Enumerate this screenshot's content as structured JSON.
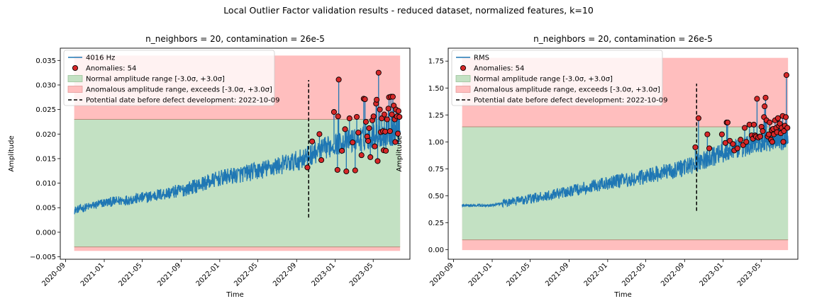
{
  "suptitle": "Local Outlier Factor validation results - reduced dataset, normalized features, k=10",
  "colors": {
    "signal": "#1f77b4",
    "anomaly_fill": "#d62728",
    "normal_band": "#c3e1c3",
    "anomalous_band": "#ffbebe",
    "defect_line": "#000000"
  },
  "chart_data": [
    {
      "type": "line",
      "title": "n_neighbors = 20, contamination = 26e-5",
      "xlabel": "Time",
      "ylabel": "Amplitude",
      "xlim": [
        "2020-08-15",
        "2023-08-25"
      ],
      "ylim": [
        -0.0055,
        0.0375
      ],
      "x_ticks": [
        "2020-09",
        "2021-01",
        "2021-05",
        "2021-09",
        "2022-01",
        "2022-05",
        "2022-09",
        "2023-01",
        "2023-05"
      ],
      "y_ticks": [
        -0.005,
        0.0,
        0.005,
        0.01,
        0.015,
        0.02,
        0.025,
        0.03,
        0.035
      ],
      "y_tick_labels": [
        "−0.005",
        "0.000",
        "0.005",
        "0.010",
        "0.015",
        "0.020",
        "0.025",
        "0.030",
        "0.035"
      ],
      "x_range": [
        "2020-09-28",
        "2023-07-25"
      ],
      "legend_position": "upper-left",
      "legend": {
        "series": "4016 Hz",
        "anomalies": "Anomalies: 54",
        "normal": "Normal amplitude range [-3.0σ, +3.0σ]",
        "anomalous": "Anomalous amplitude range, exceeds [-3.0σ, +3.0σ]",
        "defect": "Potential date before defect development: 2022-10-09"
      },
      "normal_range": [
        -0.003,
        0.023
      ],
      "anomalous_range": [
        -0.0038,
        0.036
      ],
      "defect_date": "2022-10-09",
      "defect_line_range": [
        0.003,
        0.031
      ],
      "series_trend": [
        [
          "2020-09-28",
          0.0045
        ],
        [
          "2021-01-01",
          0.006
        ],
        [
          "2021-05-01",
          0.007
        ],
        [
          "2021-09-01",
          0.0085
        ],
        [
          "2022-01-01",
          0.011
        ],
        [
          "2022-05-01",
          0.0125
        ],
        [
          "2022-09-01",
          0.0145
        ],
        [
          "2023-01-01",
          0.018
        ],
        [
          "2023-05-01",
          0.0195
        ],
        [
          "2023-07-25",
          0.0205
        ]
      ],
      "anomalies": [
        [
          "2022-10-05",
          0.0132
        ],
        [
          "2022-10-20",
          0.0185
        ],
        [
          "2022-11-12",
          0.02
        ],
        [
          "2022-11-18",
          0.0147
        ],
        [
          "2022-12-28",
          0.0245
        ],
        [
          "2023-01-08",
          0.0127
        ],
        [
          "2023-01-10",
          0.0236
        ],
        [
          "2023-01-12",
          0.0311
        ],
        [
          "2023-01-22",
          0.0166
        ],
        [
          "2023-02-01",
          0.021
        ],
        [
          "2023-02-05",
          0.0124
        ],
        [
          "2023-02-15",
          0.0232
        ],
        [
          "2023-02-25",
          0.0183
        ],
        [
          "2023-03-05",
          0.0126
        ],
        [
          "2023-03-10",
          0.0235
        ],
        [
          "2023-03-15",
          0.0203
        ],
        [
          "2023-03-25",
          0.0157
        ],
        [
          "2023-04-01",
          0.0272
        ],
        [
          "2023-04-05",
          0.0271
        ],
        [
          "2023-04-08",
          0.0225
        ],
        [
          "2023-04-12",
          0.0195
        ],
        [
          "2023-04-15",
          0.0186
        ],
        [
          "2023-04-18",
          0.0212
        ],
        [
          "2023-04-22",
          0.0153
        ],
        [
          "2023-04-28",
          0.0228
        ],
        [
          "2023-05-02",
          0.0236
        ],
        [
          "2023-05-06",
          0.0175
        ],
        [
          "2023-05-10",
          0.0262
        ],
        [
          "2023-05-12",
          0.027
        ],
        [
          "2023-05-15",
          0.0145
        ],
        [
          "2023-05-18",
          0.0325
        ],
        [
          "2023-05-22",
          0.025
        ],
        [
          "2023-05-25",
          0.0204
        ],
        [
          "2023-05-28",
          0.0232
        ],
        [
          "2023-06-01",
          0.0206
        ],
        [
          "2023-06-03",
          0.0167
        ],
        [
          "2023-06-05",
          0.024
        ],
        [
          "2023-06-08",
          0.0205
        ],
        [
          "2023-06-10",
          0.0166
        ],
        [
          "2023-06-14",
          0.023
        ],
        [
          "2023-06-18",
          0.0252
        ],
        [
          "2023-06-20",
          0.0275
        ],
        [
          "2023-06-23",
          0.0206
        ],
        [
          "2023-06-26",
          0.0276
        ],
        [
          "2023-06-29",
          0.024
        ],
        [
          "2023-07-02",
          0.0276
        ],
        [
          "2023-07-05",
          0.0258
        ],
        [
          "2023-07-08",
          0.023
        ],
        [
          "2023-07-10",
          0.0184
        ],
        [
          "2023-07-12",
          0.025
        ],
        [
          "2023-07-15",
          0.0236
        ],
        [
          "2023-07-18",
          0.0201
        ],
        [
          "2023-07-20",
          0.0247
        ],
        [
          "2023-07-23",
          0.0235
        ]
      ]
    },
    {
      "type": "line",
      "title": "n_neighbors = 20, contamination = 26e-5",
      "xlabel": "Time",
      "ylabel": "Amplitude",
      "xlim": [
        "2020-08-15",
        "2023-08-25"
      ],
      "ylim": [
        -0.09,
        1.87
      ],
      "x_ticks": [
        "2020-09",
        "2021-01",
        "2021-05",
        "2021-09",
        "2022-01",
        "2022-05",
        "2022-09",
        "2023-01",
        "2023-05"
      ],
      "y_ticks": [
        0.0,
        0.25,
        0.5,
        0.75,
        1.0,
        1.25,
        1.5,
        1.75
      ],
      "y_tick_labels": [
        "0.00",
        "0.25",
        "0.50",
        "0.75",
        "1.00",
        "1.25",
        "1.50",
        "1.75"
      ],
      "x_range": [
        "2020-09-28",
        "2023-07-25"
      ],
      "legend_position": "upper-left",
      "legend": {
        "series": "RMS",
        "anomalies": "Anomalies: 54",
        "normal": "Normal amplitude range [-3.0σ, +3.0σ]",
        "anomalous": "Anomalous amplitude range, exceeds [-3.0σ, +3.0σ]",
        "defect": "Potential date before defect development: 2022-10-09"
      },
      "normal_range": [
        0.09,
        1.14
      ],
      "anomalous_range": [
        -0.005,
        1.78
      ],
      "defect_date": "2022-10-09",
      "defect_line_range": [
        0.36,
        1.54
      ],
      "series_trend": [
        [
          "2020-09-28",
          0.41
        ],
        [
          "2021-01-01",
          0.41
        ],
        [
          "2021-02-01",
          0.43
        ],
        [
          "2021-05-01",
          0.47
        ],
        [
          "2021-09-01",
          0.54
        ],
        [
          "2022-01-01",
          0.62
        ],
        [
          "2022-05-01",
          0.68
        ],
        [
          "2022-09-01",
          0.76
        ],
        [
          "2023-01-01",
          0.9
        ],
        [
          "2023-05-01",
          1.0
        ],
        [
          "2023-07-25",
          1.02
        ]
      ],
      "anomalies": [
        [
          "2022-10-05",
          0.95
        ],
        [
          "2022-10-15",
          1.22
        ],
        [
          "2022-11-12",
          1.07
        ],
        [
          "2022-11-18",
          0.94
        ],
        [
          "2022-12-28",
          1.07
        ],
        [
          "2023-01-08",
          0.99
        ],
        [
          "2023-01-12",
          1.18
        ],
        [
          "2023-01-15",
          1.18
        ],
        [
          "2023-01-22",
          1.01
        ],
        [
          "2023-02-01",
          0.98
        ],
        [
          "2023-02-05",
          0.92
        ],
        [
          "2023-02-15",
          0.94
        ],
        [
          "2023-02-25",
          1.02
        ],
        [
          "2023-03-05",
          0.97
        ],
        [
          "2023-03-10",
          1.13
        ],
        [
          "2023-03-15",
          1.0
        ],
        [
          "2023-03-25",
          1.16
        ],
        [
          "2023-04-01",
          1.06
        ],
        [
          "2023-04-05",
          1.03
        ],
        [
          "2023-04-08",
          1.16
        ],
        [
          "2023-04-12",
          1.06
        ],
        [
          "2023-04-15",
          1.05
        ],
        [
          "2023-04-18",
          1.4
        ],
        [
          "2023-04-22",
          1.04
        ],
        [
          "2023-04-28",
          1.05
        ],
        [
          "2023-05-02",
          1.14
        ],
        [
          "2023-05-06",
          1.1
        ],
        [
          "2023-05-10",
          1.23
        ],
        [
          "2023-05-12",
          1.33
        ],
        [
          "2023-05-15",
          1.41
        ],
        [
          "2023-05-18",
          1.2
        ],
        [
          "2023-05-22",
          1.05
        ],
        [
          "2023-05-25",
          1.07
        ],
        [
          "2023-05-28",
          1.18
        ],
        [
          "2023-06-01",
          1.02
        ],
        [
          "2023-06-03",
          1.11
        ],
        [
          "2023-06-05",
          1.0
        ],
        [
          "2023-06-08",
          1.12
        ],
        [
          "2023-06-10",
          1.07
        ],
        [
          "2023-06-14",
          1.2
        ],
        [
          "2023-06-18",
          1.13
        ],
        [
          "2023-06-20",
          1.09
        ],
        [
          "2023-06-23",
          1.22
        ],
        [
          "2023-06-26",
          1.15
        ],
        [
          "2023-06-29",
          1.17
        ],
        [
          "2023-07-02",
          1.08
        ],
        [
          "2023-07-05",
          1.13
        ],
        [
          "2023-07-08",
          1.24
        ],
        [
          "2023-07-10",
          1.0
        ],
        [
          "2023-07-12",
          1.1
        ],
        [
          "2023-07-15",
          1.15
        ],
        [
          "2023-07-18",
          1.23
        ],
        [
          "2023-07-20",
          1.62
        ],
        [
          "2023-07-23",
          1.13
        ]
      ]
    }
  ]
}
